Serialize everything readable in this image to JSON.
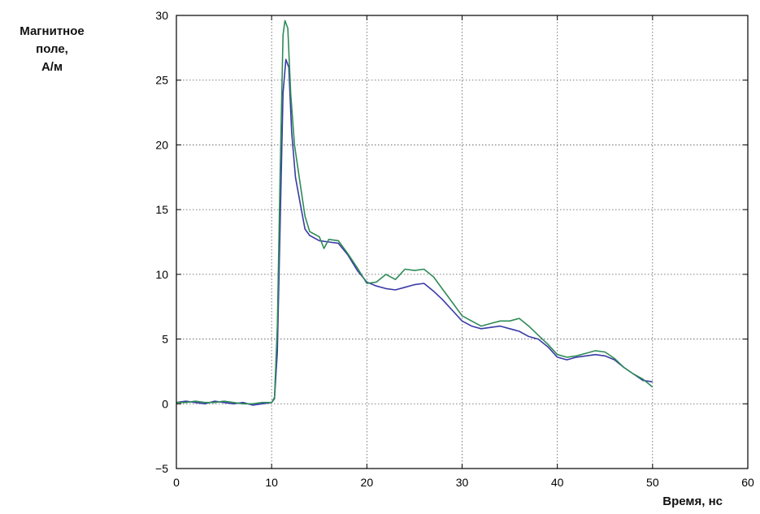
{
  "chart_data": {
    "type": "line",
    "title": "",
    "ylabel_lines": [
      "Магнитное",
      "поле,",
      "А/м"
    ],
    "xlabel": "Время, нс",
    "xlim": [
      0,
      60
    ],
    "ylim": [
      -5,
      30
    ],
    "xticks": [
      0,
      10,
      20,
      30,
      40,
      50,
      60
    ],
    "yticks": [
      -5,
      0,
      5,
      10,
      15,
      20,
      25,
      30
    ],
    "grid": true,
    "series": [
      {
        "color": "#3a3aa8",
        "points": [
          [
            0,
            0.1
          ],
          [
            1,
            0.2
          ],
          [
            2,
            0.1
          ],
          [
            3,
            0.0
          ],
          [
            4,
            0.2
          ],
          [
            5,
            0.1
          ],
          [
            6,
            0.0
          ],
          [
            7,
            0.1
          ],
          [
            8,
            -0.1
          ],
          [
            9,
            0.0
          ],
          [
            10,
            0.1
          ],
          [
            10.3,
            0.4
          ],
          [
            10.6,
            4.0
          ],
          [
            10.9,
            14.0
          ],
          [
            11.2,
            24.0
          ],
          [
            11.5,
            26.6
          ],
          [
            11.8,
            26.0
          ],
          [
            12.1,
            21.0
          ],
          [
            12.5,
            17.5
          ],
          [
            13,
            15.5
          ],
          [
            13.5,
            13.5
          ],
          [
            14,
            13.0
          ],
          [
            15,
            12.6
          ],
          [
            16,
            12.5
          ],
          [
            17,
            12.4
          ],
          [
            18,
            11.5
          ],
          [
            19,
            10.3
          ],
          [
            20,
            9.4
          ],
          [
            21,
            9.1
          ],
          [
            22,
            8.9
          ],
          [
            23,
            8.8
          ],
          [
            24,
            9.0
          ],
          [
            25,
            9.2
          ],
          [
            26,
            9.3
          ],
          [
            27,
            8.7
          ],
          [
            28,
            8.0
          ],
          [
            29,
            7.2
          ],
          [
            30,
            6.4
          ],
          [
            31,
            6.0
          ],
          [
            32,
            5.8
          ],
          [
            33,
            5.9
          ],
          [
            34,
            6.0
          ],
          [
            35,
            5.8
          ],
          [
            36,
            5.6
          ],
          [
            37,
            5.2
          ],
          [
            38,
            5.0
          ],
          [
            39,
            4.4
          ],
          [
            40,
            3.6
          ],
          [
            41,
            3.4
          ],
          [
            42,
            3.6
          ],
          [
            43,
            3.7
          ],
          [
            44,
            3.8
          ],
          [
            45,
            3.7
          ],
          [
            46,
            3.4
          ],
          [
            47,
            2.8
          ],
          [
            48,
            2.3
          ],
          [
            49,
            1.8
          ],
          [
            50,
            1.7
          ]
        ]
      },
      {
        "color": "#2e8b57",
        "points": [
          [
            0,
            0.1
          ],
          [
            1,
            0.1
          ],
          [
            2,
            0.2
          ],
          [
            3,
            0.1
          ],
          [
            4,
            0.1
          ],
          [
            5,
            0.2
          ],
          [
            6,
            0.1
          ],
          [
            7,
            0.0
          ],
          [
            8,
            0.0
          ],
          [
            9,
            0.1
          ],
          [
            10,
            0.1
          ],
          [
            10.3,
            0.5
          ],
          [
            10.6,
            6.0
          ],
          [
            10.9,
            18.0
          ],
          [
            11.2,
            28.5
          ],
          [
            11.4,
            29.6
          ],
          [
            11.7,
            29.0
          ],
          [
            12.0,
            24.0
          ],
          [
            12.4,
            20.0
          ],
          [
            13,
            17.0
          ],
          [
            13.5,
            14.5
          ],
          [
            14,
            13.3
          ],
          [
            15,
            12.9
          ],
          [
            15.5,
            12.0
          ],
          [
            16,
            12.7
          ],
          [
            17,
            12.6
          ],
          [
            18,
            11.6
          ],
          [
            19,
            10.5
          ],
          [
            20,
            9.3
          ],
          [
            21,
            9.4
          ],
          [
            22,
            10.0
          ],
          [
            23,
            9.6
          ],
          [
            24,
            10.4
          ],
          [
            25,
            10.3
          ],
          [
            26,
            10.4
          ],
          [
            27,
            9.8
          ],
          [
            28,
            8.8
          ],
          [
            29,
            7.8
          ],
          [
            30,
            6.8
          ],
          [
            31,
            6.4
          ],
          [
            32,
            6.0
          ],
          [
            33,
            6.2
          ],
          [
            34,
            6.4
          ],
          [
            35,
            6.4
          ],
          [
            36,
            6.6
          ],
          [
            37,
            6.0
          ],
          [
            38,
            5.3
          ],
          [
            39,
            4.6
          ],
          [
            40,
            3.8
          ],
          [
            41,
            3.6
          ],
          [
            42,
            3.7
          ],
          [
            43,
            3.9
          ],
          [
            44,
            4.1
          ],
          [
            45,
            4.0
          ],
          [
            46,
            3.5
          ],
          [
            47,
            2.8
          ],
          [
            48,
            2.3
          ],
          [
            49,
            1.9
          ],
          [
            50,
            1.3
          ]
        ]
      }
    ]
  }
}
